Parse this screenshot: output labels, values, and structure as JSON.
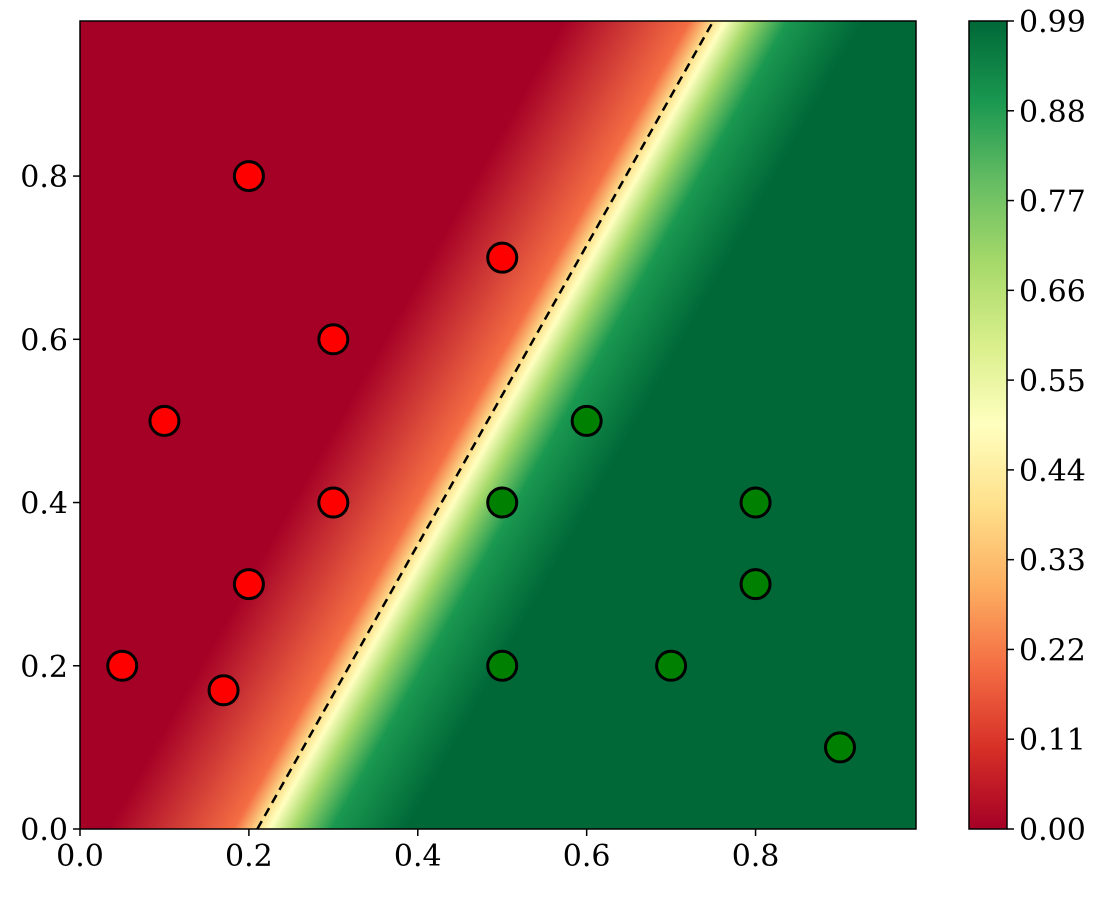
{
  "chart_data": {
    "type": "scatter",
    "title": "",
    "xlabel": "",
    "ylabel": "",
    "xlim": [
      0,
      0.99
    ],
    "ylim": [
      0,
      0.99
    ],
    "x_ticks": [
      "0.0",
      "0.2",
      "0.4",
      "0.6",
      "0.8"
    ],
    "y_ticks": [
      "0.0",
      "0.2",
      "0.4",
      "0.6",
      "0.8"
    ],
    "x_tick_values": [
      0,
      0.2,
      0.4,
      0.6,
      0.8
    ],
    "y_tick_values": [
      0,
      0.2,
      0.4,
      0.6,
      0.8
    ],
    "grid": false,
    "background": "probability heatmap (RdYlGn colormap)",
    "decision_boundary": {
      "style": "dashed",
      "color": "#000000",
      "points": [
        [
          0.21,
          0.0
        ],
        [
          0.75,
          0.99
        ]
      ]
    },
    "series": [
      {
        "color": "#ff0000",
        "points": [
          [
            0.2,
            0.8
          ],
          [
            0.5,
            0.7
          ],
          [
            0.3,
            0.6
          ],
          [
            0.1,
            0.5
          ],
          [
            0.3,
            0.4
          ],
          [
            0.2,
            0.3
          ],
          [
            0.05,
            0.2
          ],
          [
            0.17,
            0.17
          ]
        ]
      },
      {
        "color": "#008000",
        "points": [
          [
            0.6,
            0.5
          ],
          [
            0.5,
            0.4
          ],
          [
            0.8,
            0.4
          ],
          [
            0.8,
            0.3
          ],
          [
            0.5,
            0.2
          ],
          [
            0.7,
            0.2
          ],
          [
            0.9,
            0.1
          ]
        ]
      }
    ],
    "colorbar": {
      "ticks": [
        "0.00",
        "0.11",
        "0.22",
        "0.33",
        "0.44",
        "0.55",
        "0.66",
        "0.77",
        "0.88",
        "0.99"
      ],
      "tick_values": [
        0,
        0.11,
        0.22,
        0.33,
        0.44,
        0.55,
        0.66,
        0.77,
        0.88,
        0.99
      ],
      "range": [
        0,
        0.99
      ],
      "colormap": [
        "#a50026",
        "#d73027",
        "#f46d43",
        "#fdae61",
        "#fee08b",
        "#ffffbf",
        "#d9ef8b",
        "#a6d96a",
        "#66bd63",
        "#1a9850",
        "#006837"
      ]
    }
  }
}
